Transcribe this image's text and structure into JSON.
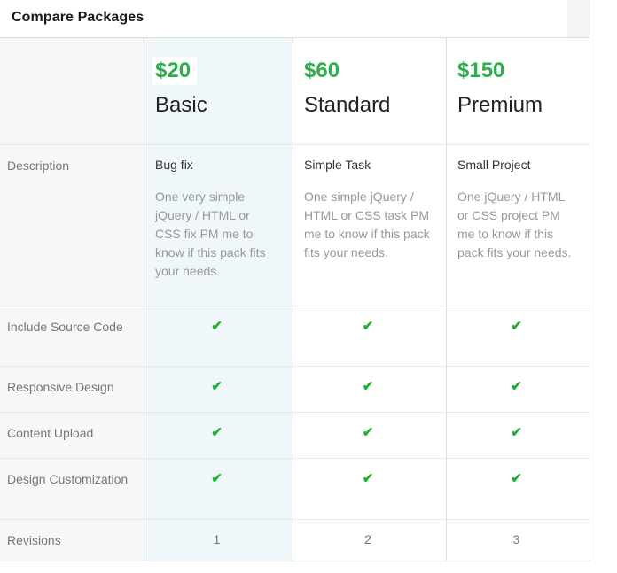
{
  "header": {
    "title": "Compare Packages"
  },
  "colors": {
    "price_green": "#2bb14c",
    "check_green": "#1eb02e",
    "basic_column_bg": "#eff7fb",
    "label_column_bg": "#f7f7f7",
    "divider": "#dddddd"
  },
  "table": {
    "check_glyph": "✔",
    "feature_labels": {
      "description": "Description",
      "include_source_code": "Include Source Code",
      "responsive_design": "Responsive Design",
      "content_upload": "Content Upload",
      "design_customization": "Design Customization",
      "revisions": "Revisions"
    },
    "packages": [
      {
        "price": "$20",
        "name": "Basic",
        "description_title": "Bug fix",
        "description_body": "One very simple jQuery / HTML or CSS fix PM me to know if this pack fits your needs.",
        "include_source_code": true,
        "responsive_design": true,
        "content_upload": true,
        "design_customization": true,
        "revisions": "1"
      },
      {
        "price": "$60",
        "name": "Standard",
        "description_title": "Simple Task",
        "description_body": "One simple jQuery / HTML or CSS task PM me to know if this pack fits your needs.",
        "include_source_code": true,
        "responsive_design": true,
        "content_upload": true,
        "design_customization": true,
        "revisions": "2"
      },
      {
        "price": "$150",
        "name": "Premium",
        "description_title": "Small Project",
        "description_body": "One jQuery / HTML or CSS project PM me to know if this pack fits your needs.",
        "include_source_code": true,
        "responsive_design": true,
        "content_upload": true,
        "design_customization": true,
        "revisions": "3"
      }
    ]
  }
}
